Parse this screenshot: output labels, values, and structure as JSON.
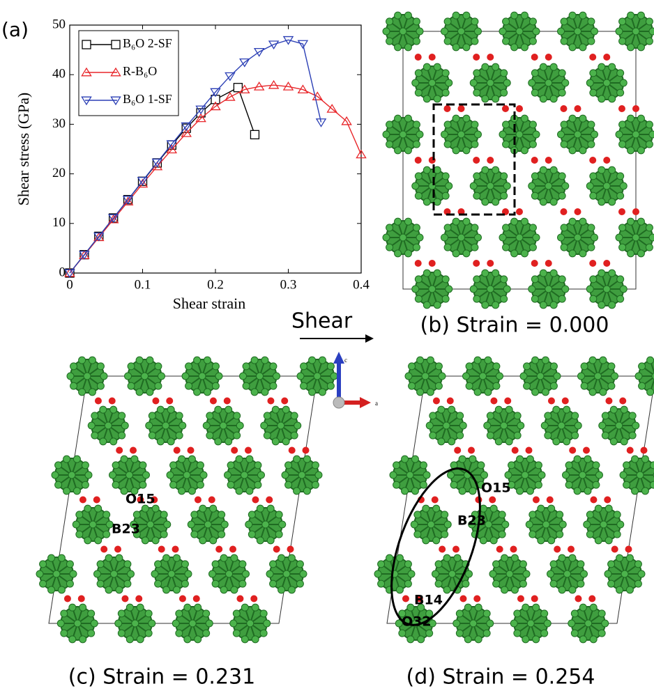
{
  "chart_data": {
    "type": "line",
    "xlabel": "Shear strain",
    "ylabel": "Shear stress (GPa)",
    "xlim": [
      0,
      0.4
    ],
    "xticks": [
      0,
      0.1,
      0.2,
      0.3,
      0.4
    ],
    "ylim": [
      0,
      50
    ],
    "yticks": [
      0,
      10,
      20,
      30,
      40,
      50
    ],
    "legend": "upper-left",
    "series": [
      {
        "name": "B₆O 2-SF",
        "color": "#000000",
        "marker": "square",
        "x": [
          0,
          0.02,
          0.04,
          0.06,
          0.08,
          0.1,
          0.12,
          0.14,
          0.16,
          0.18,
          0.2,
          0.231,
          0.254
        ],
        "values": [
          0,
          3.7,
          7.4,
          11.1,
          14.8,
          18.5,
          22.2,
          25.8,
          29.2,
          32.3,
          35.0,
          37.4,
          27.9
        ]
      },
      {
        "name": "R-B₆O",
        "color": "#e8262a",
        "marker": "triangle",
        "x": [
          0,
          0.02,
          0.04,
          0.06,
          0.08,
          0.1,
          0.12,
          0.14,
          0.16,
          0.18,
          0.2,
          0.22,
          0.24,
          0.26,
          0.28,
          0.3,
          0.32,
          0.34,
          0.36,
          0.38,
          0.4
        ],
        "values": [
          0,
          3.6,
          7.2,
          10.8,
          14.4,
          18.0,
          21.5,
          24.9,
          28.2,
          31.2,
          33.6,
          35.5,
          37.0,
          37.6,
          37.9,
          37.6,
          37.0,
          35.6,
          33.1,
          30.6,
          23.9
        ]
      },
      {
        "name": "B₆O 1-SF",
        "color": "#2b3fb5",
        "marker": "triangle-down",
        "x": [
          0,
          0.02,
          0.04,
          0.06,
          0.08,
          0.1,
          0.12,
          0.14,
          0.16,
          0.18,
          0.2,
          0.22,
          0.24,
          0.26,
          0.28,
          0.3,
          0.32,
          0.345
        ],
        "values": [
          0,
          3.7,
          7.4,
          11.1,
          14.8,
          18.6,
          22.3,
          26.0,
          29.6,
          33.0,
          36.5,
          39.7,
          42.5,
          44.6,
          46.1,
          47.0,
          46.2,
          30.4
        ]
      }
    ]
  },
  "panels": {
    "a": "(a)",
    "shear": "Shear",
    "b": "(b) Strain = 0.000",
    "c": "(c) Strain = 0.231",
    "d": "(d) Strain = 0.254",
    "axis_c": "c",
    "axis_a": "a",
    "c_labels": [
      "O15",
      "B23"
    ],
    "d_labels": [
      "O15",
      "B23",
      "B14",
      "O32"
    ]
  }
}
